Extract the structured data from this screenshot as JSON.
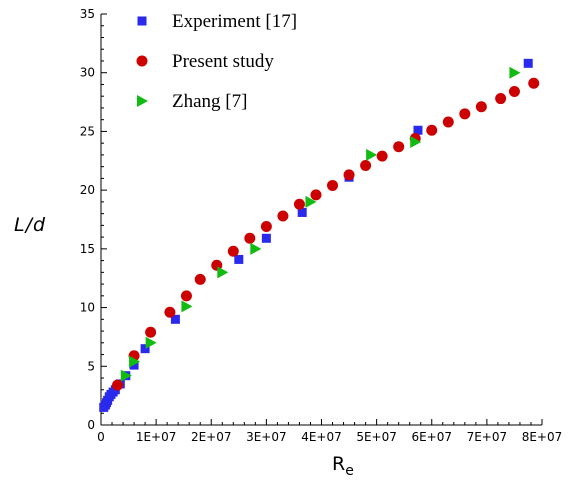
{
  "chart_data": {
    "type": "scatter",
    "xlabel": "R",
    "xlabel_subscript": "e",
    "ylabel": "L/d",
    "xlim": [
      0,
      80000000
    ],
    "ylim": [
      0,
      35
    ],
    "x_ticks": [
      0,
      10000000,
      20000000,
      30000000,
      40000000,
      50000000,
      60000000,
      70000000,
      80000000
    ],
    "x_tick_labels": [
      "0",
      "1E+07",
      "2E+07",
      "3E+07",
      "4E+07",
      "5E+07",
      "6E+07",
      "7E+07",
      "8E+07"
    ],
    "y_ticks": [
      0,
      5,
      10,
      15,
      20,
      25,
      30,
      35
    ],
    "y_tick_labels": [
      "0",
      "5",
      "10",
      "15",
      "20",
      "25",
      "30",
      "35"
    ],
    "grid": false,
    "legend_position": "top-left",
    "series": [
      {
        "name": "Experiment [17]",
        "marker": "square",
        "color": "#2a2aee",
        "points": [
          {
            "x": 500000,
            "y": 1.5
          },
          {
            "x": 800000,
            "y": 1.7
          },
          {
            "x": 1000000,
            "y": 1.9
          },
          {
            "x": 1200000,
            "y": 2.1
          },
          {
            "x": 1500000,
            "y": 2.4
          },
          {
            "x": 1800000,
            "y": 2.6
          },
          {
            "x": 2200000,
            "y": 2.8
          },
          {
            "x": 2600000,
            "y": 3.0
          },
          {
            "x": 3500000,
            "y": 3.5
          },
          {
            "x": 4500000,
            "y": 4.2
          },
          {
            "x": 6000000,
            "y": 5.1
          },
          {
            "x": 8000000,
            "y": 6.5
          },
          {
            "x": 13500000,
            "y": 9.0
          },
          {
            "x": 25000000,
            "y": 14.1
          },
          {
            "x": 30000000,
            "y": 15.9
          },
          {
            "x": 36500000,
            "y": 18.1
          },
          {
            "x": 45000000,
            "y": 21.1
          },
          {
            "x": 57500000,
            "y": 25.1
          },
          {
            "x": 77500000,
            "y": 30.8
          }
        ]
      },
      {
        "name": "Present study",
        "marker": "circle",
        "color": "#cc0000",
        "points": [
          {
            "x": 3000000,
            "y": 3.4
          },
          {
            "x": 6000000,
            "y": 5.9
          },
          {
            "x": 9000000,
            "y": 7.9
          },
          {
            "x": 12500000,
            "y": 9.6
          },
          {
            "x": 15500000,
            "y": 11.0
          },
          {
            "x": 18000000,
            "y": 12.4
          },
          {
            "x": 21000000,
            "y": 13.6
          },
          {
            "x": 24000000,
            "y": 14.8
          },
          {
            "x": 27000000,
            "y": 15.9
          },
          {
            "x": 30000000,
            "y": 16.9
          },
          {
            "x": 33000000,
            "y": 17.8
          },
          {
            "x": 36000000,
            "y": 18.8
          },
          {
            "x": 39000000,
            "y": 19.6
          },
          {
            "x": 42000000,
            "y": 20.4
          },
          {
            "x": 45000000,
            "y": 21.3
          },
          {
            "x": 48000000,
            "y": 22.1
          },
          {
            "x": 51000000,
            "y": 22.9
          },
          {
            "x": 54000000,
            "y": 23.7
          },
          {
            "x": 57000000,
            "y": 24.4
          },
          {
            "x": 60000000,
            "y": 25.1
          },
          {
            "x": 63000000,
            "y": 25.8
          },
          {
            "x": 66000000,
            "y": 26.5
          },
          {
            "x": 69000000,
            "y": 27.1
          },
          {
            "x": 72500000,
            "y": 27.8
          },
          {
            "x": 75000000,
            "y": 28.4
          },
          {
            "x": 78500000,
            "y": 29.1
          }
        ]
      },
      {
        "name": "Zhang [7]",
        "marker": "triangle-right",
        "color": "#11bb11",
        "points": [
          {
            "x": 4500000,
            "y": 4.2
          },
          {
            "x": 6000000,
            "y": 5.4
          },
          {
            "x": 9000000,
            "y": 7.0
          },
          {
            "x": 15500000,
            "y": 10.1
          },
          {
            "x": 22000000,
            "y": 13.0
          },
          {
            "x": 28000000,
            "y": 15.0
          },
          {
            "x": 38000000,
            "y": 19.0
          },
          {
            "x": 49000000,
            "y": 23.0
          },
          {
            "x": 57000000,
            "y": 24.1
          },
          {
            "x": 75000000,
            "y": 30.0
          }
        ]
      }
    ]
  }
}
